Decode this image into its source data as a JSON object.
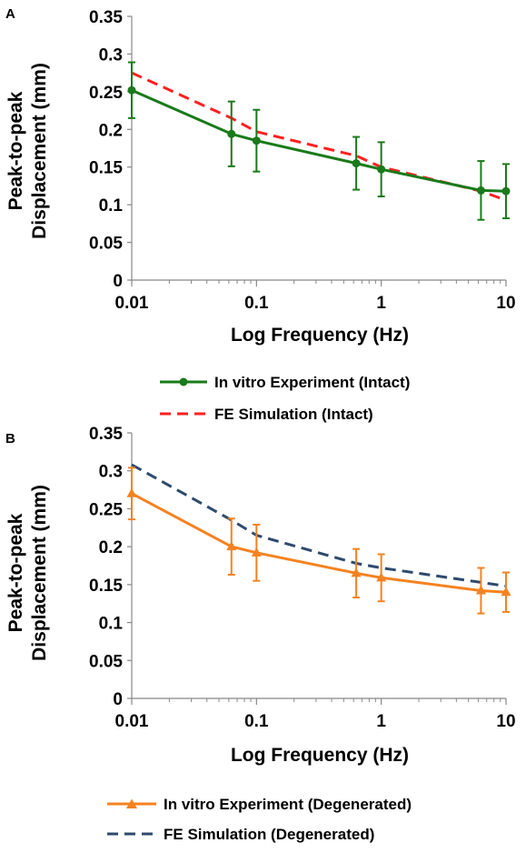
{
  "chart_data": [
    {
      "type": "line",
      "panel_label": "A",
      "title": "",
      "xlabel": "Log Frequency (Hz)",
      "ylabel_lines": [
        "Peak-to-peak",
        "Displacement (mm)"
      ],
      "x_scale": "log",
      "xlim": [
        0.01,
        10
      ],
      "ylim": [
        0,
        0.35
      ],
      "x_ticks": [
        "0.01",
        "0.1",
        "1",
        "10"
      ],
      "y_ticks": [
        "0",
        "0.05",
        "0.1",
        "0.15",
        "0.2",
        "0.25",
        "0.3",
        "0.35"
      ],
      "grid": false,
      "legend_position": "below",
      "series": [
        {
          "name": "In vitro Experiment (Intact)",
          "color": "#1a7a1a",
          "style": "solid",
          "marker": "circle",
          "x": [
            0.01,
            0.063,
            0.1,
            0.63,
            1,
            6.3,
            10
          ],
          "y": [
            0.252,
            0.194,
            0.185,
            0.155,
            0.147,
            0.119,
            0.118
          ],
          "err": [
            0.037,
            0.043,
            0.041,
            0.035,
            0.036,
            0.039,
            0.036
          ]
        },
        {
          "name": "FE Simulation (Intact)",
          "color": "#ff2020",
          "style": "dashed",
          "marker": "none",
          "x": [
            0.01,
            0.063,
            0.1,
            0.63,
            1,
            6.3,
            10
          ],
          "y": [
            0.275,
            0.215,
            0.197,
            0.165,
            0.15,
            0.118,
            0.106
          ]
        }
      ]
    },
    {
      "type": "line",
      "panel_label": "B",
      "title": "",
      "xlabel": "Log Frequency (Hz)",
      "ylabel_lines": [
        "Peak-to-peak",
        "Displacement (mm)"
      ],
      "x_scale": "log",
      "xlim": [
        0.01,
        10
      ],
      "ylim": [
        0,
        0.35
      ],
      "x_ticks": [
        "0.01",
        "0.1",
        "1",
        "10"
      ],
      "y_ticks": [
        "0",
        "0.05",
        "0.1",
        "0.15",
        "0.2",
        "0.25",
        "0.3",
        "0.35"
      ],
      "grid": false,
      "legend_position": "below",
      "series": [
        {
          "name": "In vitro Experiment (Degenerated)",
          "color": "#f58220",
          "style": "solid",
          "marker": "triangle",
          "x": [
            0.01,
            0.063,
            0.1,
            0.63,
            1,
            6.3,
            10
          ],
          "y": [
            0.27,
            0.2,
            0.192,
            0.165,
            0.159,
            0.142,
            0.14
          ],
          "err": [
            0.034,
            0.037,
            0.037,
            0.032,
            0.031,
            0.03,
            0.026
          ]
        },
        {
          "name": "FE Simulation (Degenerated)",
          "color": "#2e4a6e",
          "style": "dashed",
          "marker": "none",
          "x": [
            0.01,
            0.063,
            0.1,
            0.63,
            1,
            6.3,
            10
          ],
          "y": [
            0.308,
            0.235,
            0.215,
            0.178,
            0.172,
            0.153,
            0.148
          ]
        }
      ]
    }
  ]
}
